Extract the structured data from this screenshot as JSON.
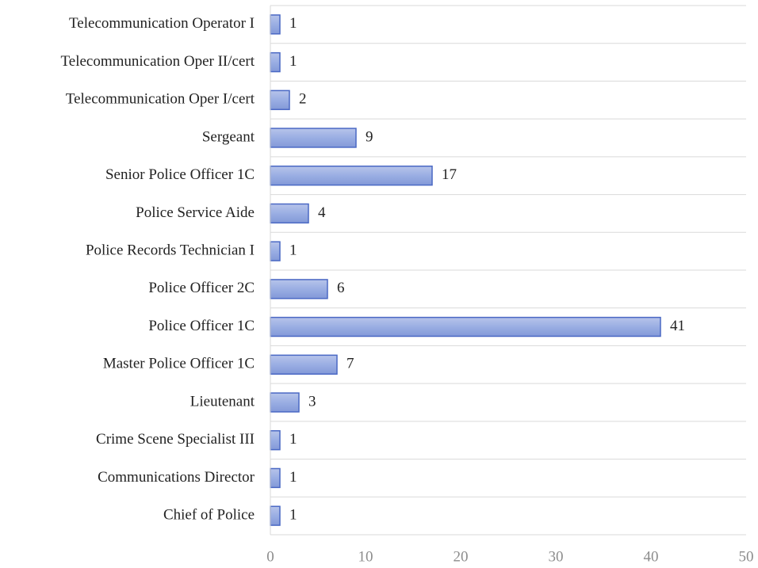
{
  "chart_data": {
    "type": "barh",
    "categories": [
      "Telecommunication Operator I",
      "Telecommunication Oper II/cert",
      "Telecommunication Oper I/cert",
      "Sergeant",
      "Senior Police Officer 1C",
      "Police Service Aide",
      "Police Records Technician I",
      "Police Officer 2C",
      "Police Officer 1C",
      "Master Police Officer 1C",
      "Lieutenant",
      "Crime Scene Specialist III",
      "Communications Director",
      "Chief of Police"
    ],
    "values": [
      1,
      1,
      2,
      9,
      17,
      4,
      1,
      6,
      41,
      7,
      3,
      1,
      1,
      1
    ],
    "color": "#8fa3dc",
    "xlim": [
      0,
      50
    ],
    "xticks": [
      0,
      10,
      20,
      30,
      40,
      50
    ],
    "grid": true
  }
}
